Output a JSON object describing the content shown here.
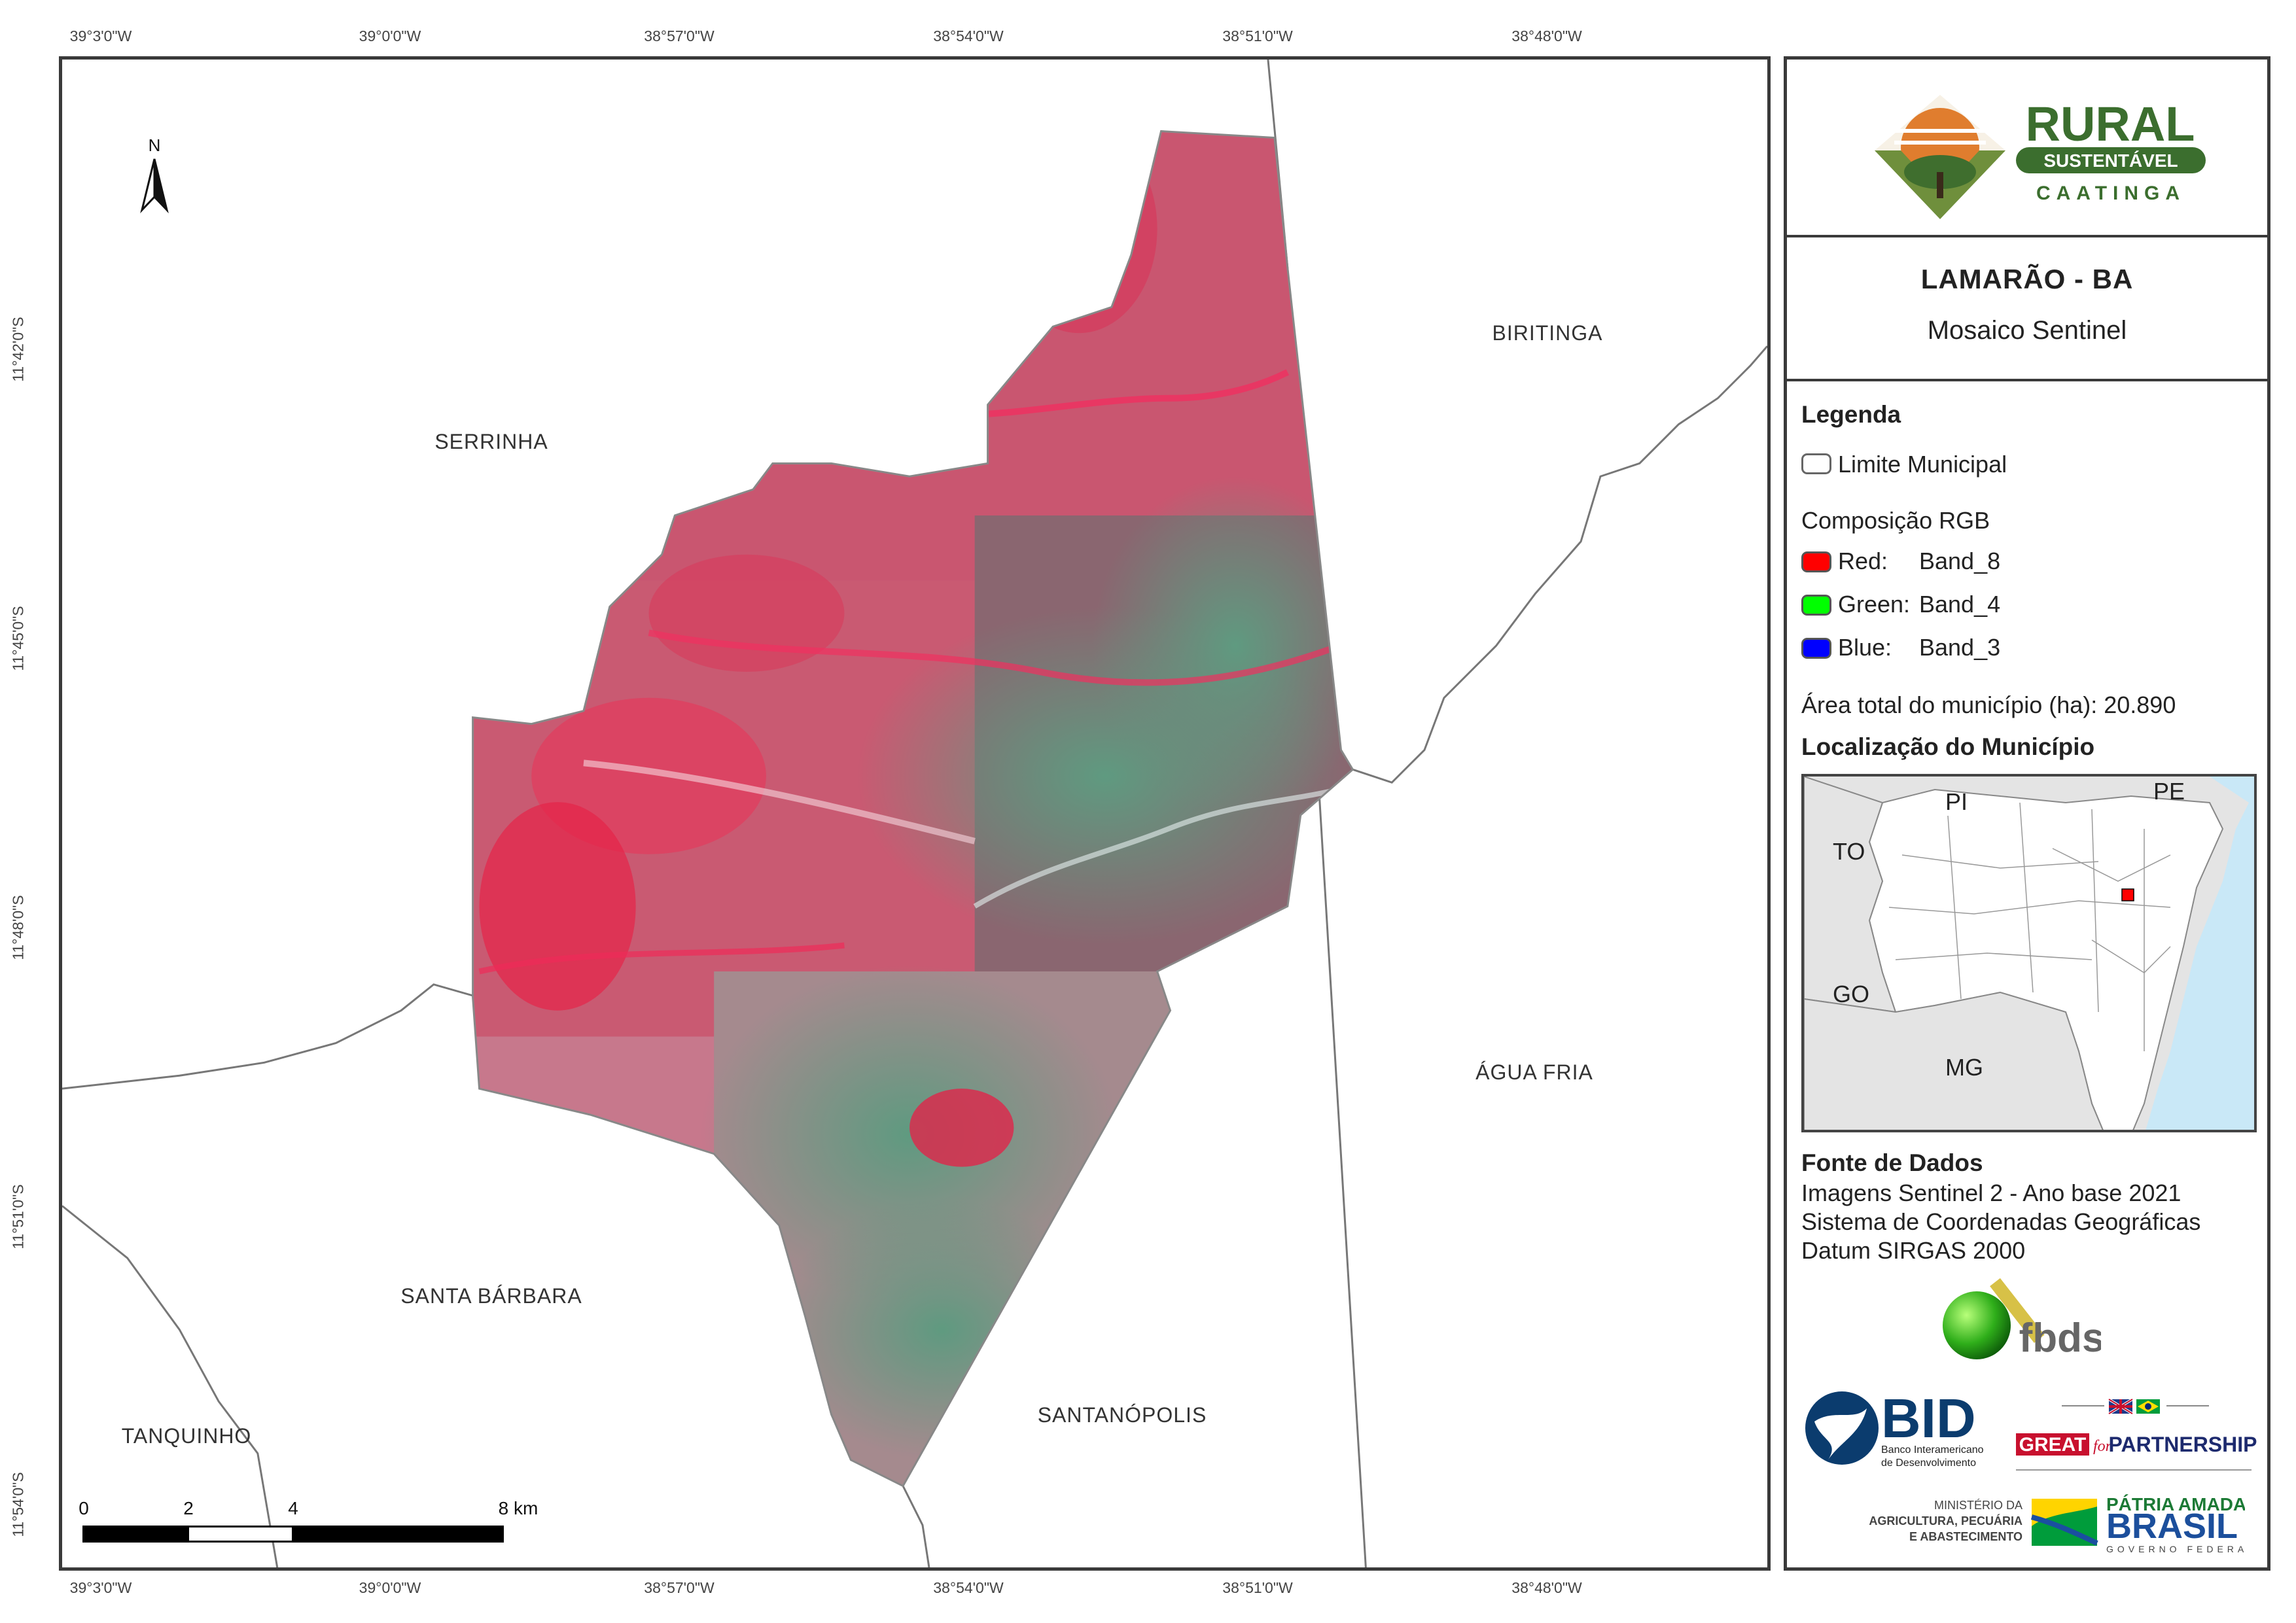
{
  "map": {
    "top_ticks": [
      "39°3'0\"W",
      "39°0'0\"W",
      "38°57'0\"W",
      "38°54'0\"W",
      "38°51'0\"W",
      "38°48'0\"W"
    ],
    "bottom_ticks": [
      "39°3'0\"W",
      "39°0'0\"W",
      "38°57'0\"W",
      "38°54'0\"W",
      "38°51'0\"W",
      "38°48'0\"W"
    ],
    "left_ticks": [
      "11°42'0\"S",
      "11°45'0\"S",
      "11°48'0\"S",
      "11°51'0\"S",
      "11°54'0\"S"
    ],
    "north_label": "N",
    "places": {
      "serrinha": "SERRINHA",
      "biritinga": "BIRITINGA",
      "agua_fria": "ÁGUA FRIA",
      "santa_barbara": "SANTA BÁRBARA",
      "santanopolis": "SANTANÓPOLIS",
      "tanquinho": "TANQUINHO"
    },
    "scale": {
      "labels": [
        "0",
        "2",
        "4",
        "8 km"
      ]
    }
  },
  "panel": {
    "logo": {
      "rural": "RURAL",
      "sustentavel": "SUSTENTÁVEL",
      "caatinga": "CAATINGA"
    },
    "title": "LAMARÃO - BA",
    "subtitle": "Mosaico Sentinel",
    "legend": {
      "heading": "Legenda",
      "limit_label": "Limite Municipal",
      "rgb_heading": "Composição RGB",
      "rgb_items": [
        {
          "channel": "Red:",
          "band": "Band_8",
          "color": "#ff0000"
        },
        {
          "channel": "Green:",
          "band": "Band_4",
          "color": "#00ff00"
        },
        {
          "channel": "Blue:",
          "band": "Band_3",
          "color": "#0000ff"
        }
      ],
      "area_text": "Área total do município (ha): 20.890",
      "location_heading": "Localização do Município"
    },
    "locator_labels": {
      "pi": "PI",
      "pe": "PE",
      "to": "TO",
      "go": "GO",
      "mg": "MG"
    },
    "sources": {
      "heading": "Fonte de Dados",
      "line1": "Imagens Sentinel 2 - Ano base 2021",
      "line2": "Sistema de Coordenadas Geográficas",
      "line3": "Datum SIRGAS 2000"
    },
    "logos": {
      "fbds": "fbds",
      "bid": "BID",
      "bid_sub1": "Banco Interamericano",
      "bid_sub2": "de Desenvolvimento",
      "great": "GREAT",
      "great_for": "for",
      "partnership": "PARTNERSHIP",
      "min1": "MINISTÉRIO DA",
      "min2": "AGRICULTURA, PECUÁRIA",
      "min3": "E ABASTECIMENTO",
      "patria": "PÁTRIA AMADA",
      "brasil": "BRASIL",
      "governo": "GOVERNO FEDERAL"
    }
  }
}
